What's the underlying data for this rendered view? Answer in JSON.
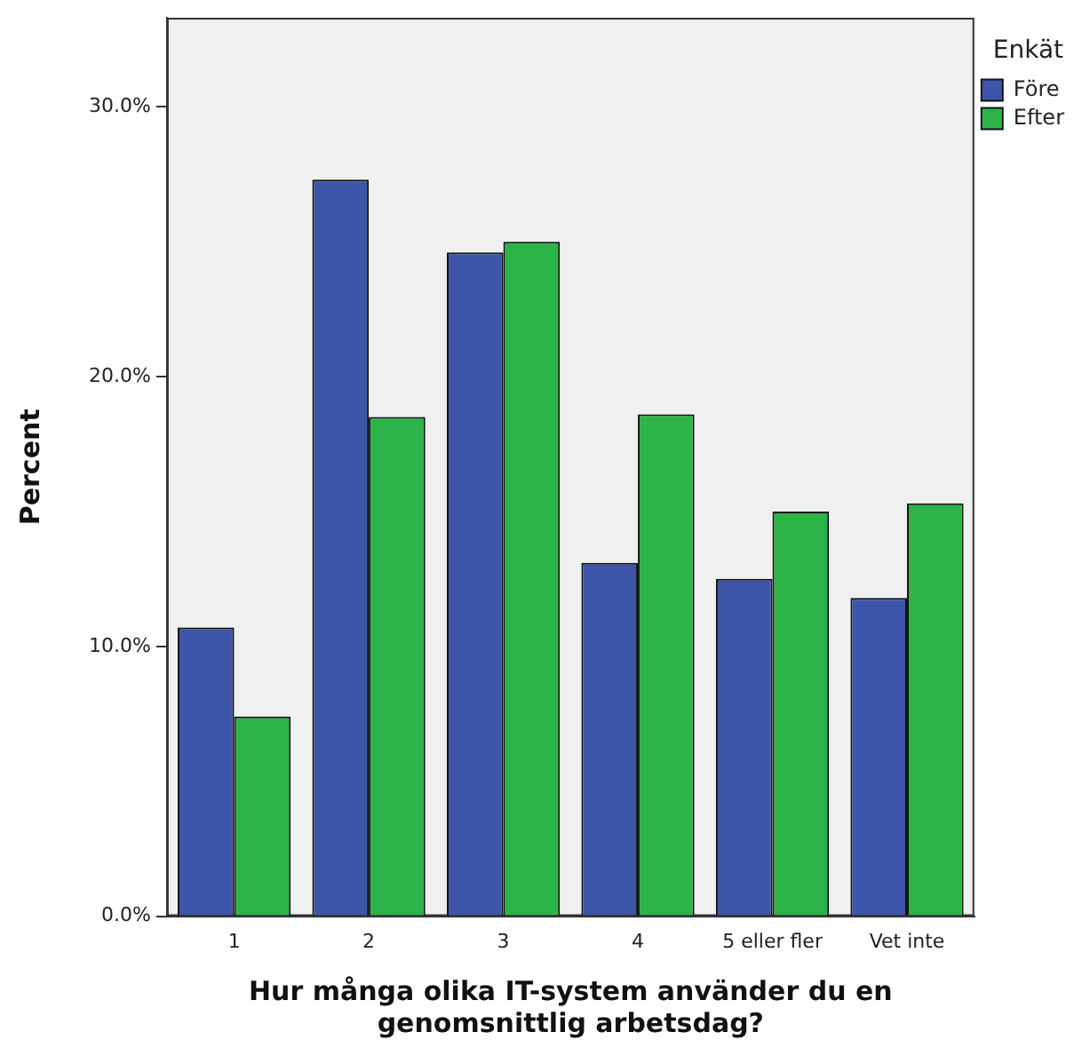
{
  "chart_data": {
    "type": "bar",
    "xlabel": "Hur många olika IT-system använder du en genomsnittlig arbetsdag?",
    "ylabel": "Percent",
    "legend_title": "Enkät",
    "legend": "top right",
    "categories": [
      "1",
      "2",
      "3",
      "4",
      "5 eller fler",
      "Vet inte"
    ],
    "series": [
      {
        "name": "Före",
        "color": "#3d56a9",
        "values": [
          10.7,
          27.3,
          24.6,
          13.1,
          12.5,
          11.8
        ]
      },
      {
        "name": "Efter",
        "color": "#2db448",
        "values": [
          7.4,
          18.5,
          25.0,
          18.6,
          15.0,
          15.3
        ]
      }
    ],
    "ylim": [
      0,
      33.3
    ],
    "yticks": [
      {
        "value": 0,
        "label": "0.0%"
      },
      {
        "value": 10,
        "label": "10.0%"
      },
      {
        "value": 20,
        "label": "20.0%"
      },
      {
        "value": 30,
        "label": "30.0%"
      }
    ],
    "grid": false
  }
}
